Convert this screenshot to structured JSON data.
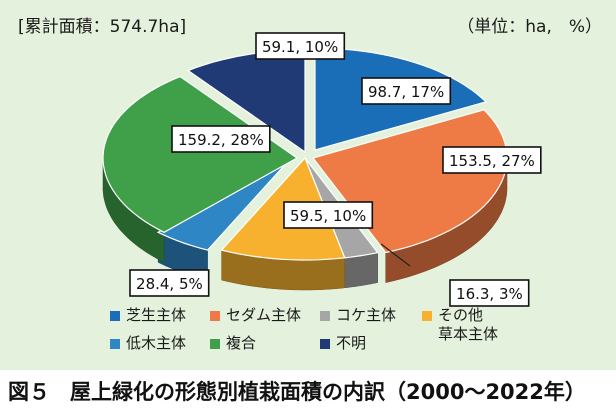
{
  "header": {
    "total_area": "[累計面積：574.7ha]",
    "unit": "（単位：ha,　%）"
  },
  "caption": {
    "number": "図５",
    "title": "屋上緑化の形態別植栽面積の内訳（2000～2022年）"
  },
  "colors": {
    "background": "#e4f1dc",
    "turf": "#1a6eb8",
    "sedum": "#ee7a46",
    "moss": "#a6a6a6",
    "other_herb": "#f7b12e",
    "low_tree": "#2f86c5",
    "composite": "#3fa049",
    "unknown": "#1f3a74"
  },
  "chart_data": {
    "type": "pie",
    "title": "",
    "style": "3d-exploded",
    "slices": [
      {
        "category": "芝生主体",
        "value": 98.7,
        "percent": 17,
        "label": "98.7, 17%",
        "color": "#1a6eb8"
      },
      {
        "category": "セダム主体",
        "value": 153.5,
        "percent": 27,
        "label": "153.5, 27%",
        "color": "#ee7a46"
      },
      {
        "category": "コケ主体",
        "value": 16.3,
        "percent": 3,
        "label": "16.3, 3%",
        "color": "#a6a6a6"
      },
      {
        "category": "その他草本主体",
        "value": 59.5,
        "percent": 10,
        "label": "59.5, 10%",
        "color": "#f7b12e"
      },
      {
        "category": "低木主体",
        "value": 28.4,
        "percent": 5,
        "label": "28.4, 5%",
        "color": "#2f86c5"
      },
      {
        "category": "複合",
        "value": 159.2,
        "percent": 28,
        "label": "159.2, 28%",
        "color": "#3fa049"
      },
      {
        "category": "不明",
        "value": 59.1,
        "percent": 10,
        "label": "59.1, 10%",
        "color": "#1f3a74"
      }
    ],
    "legend_position": "bottom",
    "legend": [
      {
        "label": "芝生主体",
        "color": "#1a6eb8"
      },
      {
        "label": "セダム主体",
        "color": "#ee7a46"
      },
      {
        "label": "コケ主体",
        "color": "#a6a6a6"
      },
      {
        "label": "その他",
        "label2": "草本主体",
        "color": "#f7b12e"
      },
      {
        "label": "低木主体",
        "color": "#2f86c5"
      },
      {
        "label": "複合",
        "color": "#3fa049"
      },
      {
        "label": "不明",
        "color": "#1f3a74"
      }
    ]
  }
}
